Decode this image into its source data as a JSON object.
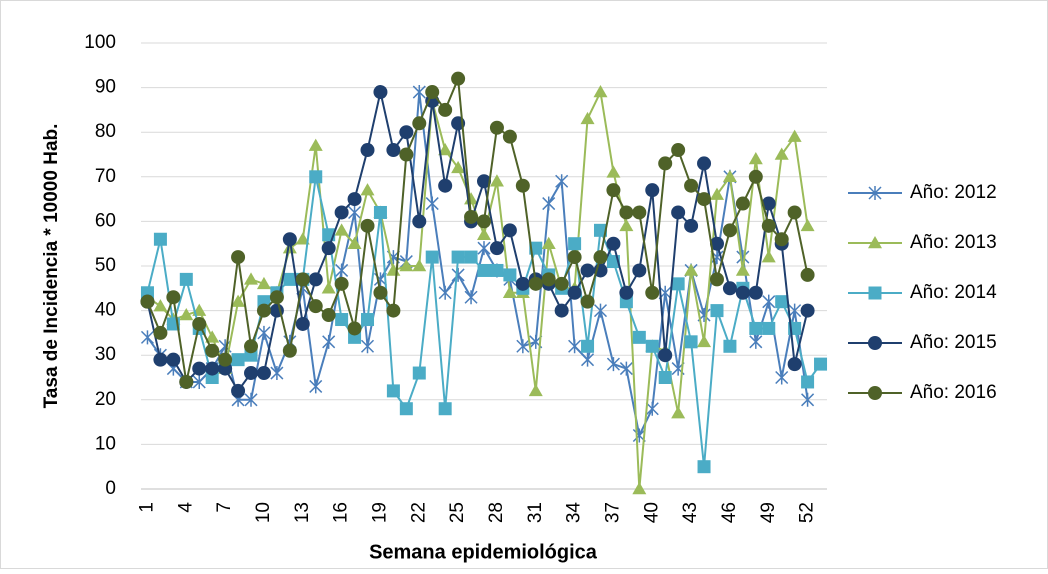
{
  "chart_data": {
    "type": "line",
    "y_label": "Tasa de Incidencia * 10000 Hab.",
    "x_label": "Semana epidemiológica",
    "categories": [
      1,
      null,
      null,
      4,
      null,
      null,
      7,
      null,
      null,
      10,
      null,
      null,
      13,
      null,
      null,
      16,
      null,
      null,
      19,
      null,
      null,
      22,
      null,
      null,
      25,
      null,
      null,
      28,
      null,
      null,
      31,
      null,
      null,
      34,
      null,
      null,
      37,
      null,
      null,
      40,
      null,
      null,
      43,
      null,
      null,
      46,
      null,
      null,
      49,
      null,
      null,
      52,
      null
    ],
    "ylim": [
      0,
      100
    ],
    "yticks": [
      0,
      10,
      20,
      30,
      40,
      50,
      60,
      70,
      80,
      90,
      100
    ],
    "grid": true,
    "legend": "right",
    "series": [
      {
        "name": "Año: 2012",
        "color": "#4a7ebb",
        "marker": "x",
        "values": [
          34,
          30,
          27,
          24,
          24,
          27,
          32,
          20,
          20,
          35,
          26,
          33,
          45,
          23,
          33,
          49,
          62,
          32,
          47,
          52,
          51,
          89,
          64,
          44,
          48,
          43,
          54,
          49,
          47,
          32,
          33,
          64,
          69,
          32,
          29,
          40,
          28,
          27,
          12,
          18,
          44,
          27,
          49,
          39,
          52,
          70,
          52,
          33,
          42,
          25,
          40,
          20,
          null
        ]
      },
      {
        "name": "Año: 2013",
        "color": "#9bbb59",
        "marker": "triangle",
        "values": [
          43,
          41,
          38,
          39,
          40,
          34,
          27,
          42,
          47,
          46,
          44,
          54,
          56,
          77,
          45,
          58,
          55,
          67,
          62,
          49,
          50,
          50,
          87,
          76,
          72,
          65,
          57,
          69,
          44,
          44,
          22,
          55,
          45,
          45,
          83,
          89,
          71,
          59,
          0,
          32,
          31,
          17,
          49,
          33,
          66,
          70,
          49,
          74,
          52,
          75,
          79,
          59,
          null
        ]
      },
      {
        "name": "Año: 2014",
        "color": "#4bacc6",
        "marker": "square",
        "values": [
          44,
          56,
          37,
          47,
          36,
          25,
          28,
          29,
          30,
          42,
          44,
          47,
          47,
          70,
          57,
          38,
          34,
          38,
          62,
          22,
          18,
          26,
          52,
          18,
          52,
          52,
          49,
          49,
          48,
          45,
          54,
          48,
          45,
          55,
          32,
          58,
          51,
          42,
          34,
          32,
          25,
          46,
          33,
          5,
          40,
          32,
          45,
          36,
          36,
          42,
          36,
          24,
          28
        ]
      },
      {
        "name": "Año: 2015",
        "color": "#1f3f6e",
        "marker": "circle",
        "values": [
          42,
          29,
          29,
          24,
          27,
          27,
          27,
          22,
          26,
          26,
          40,
          56,
          37,
          47,
          54,
          62,
          65,
          76,
          89,
          76,
          80,
          60,
          87,
          68,
          82,
          60,
          69,
          54,
          58,
          46,
          47,
          46,
          40,
          44,
          49,
          49,
          55,
          44,
          49,
          67,
          30,
          62,
          59,
          73,
          55,
          45,
          44,
          44,
          64,
          55,
          28,
          40,
          null
        ]
      },
      {
        "name": "Año: 2016",
        "color": "#4f6228",
        "marker": "circle",
        "values": [
          42,
          35,
          43,
          24,
          37,
          31,
          29,
          52,
          32,
          40,
          43,
          31,
          47,
          41,
          39,
          46,
          36,
          59,
          44,
          40,
          75,
          82,
          89,
          85,
          92,
          61,
          60,
          81,
          79,
          68,
          46,
          47,
          46,
          52,
          42,
          52,
          67,
          62,
          62,
          44,
          73,
          76,
          68,
          65,
          47,
          58,
          64,
          70,
          59,
          56,
          62,
          48,
          null
        ]
      }
    ]
  }
}
